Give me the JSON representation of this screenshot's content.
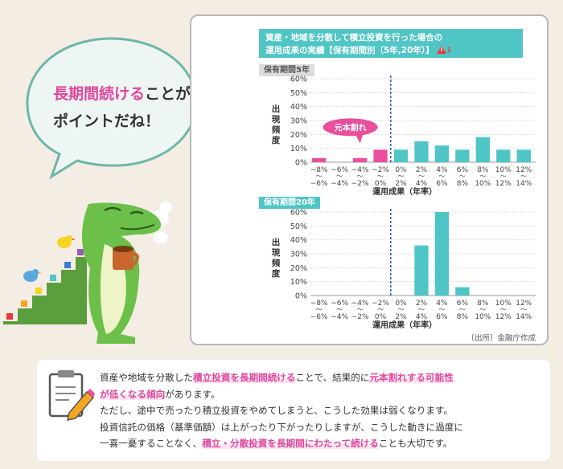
{
  "bubble": {
    "line1_pink": "長期間続ける",
    "line1_rest": "ことが",
    "line2": "ポイントだね！"
  },
  "panel": {
    "title_line1": "資産・地域を分散して積立投資を行った場合の",
    "title_line2": "運用成果の実績【保有期間別（5年,20年）】",
    "warn_icon": "!",
    "warn_num": "1",
    "ylabel": "出現頻度",
    "source": "〔出所〕金融庁作成"
  },
  "chart_data": [
    {
      "type": "bar",
      "title": "保有期間5年",
      "categories": [
        "−8%〜−6%",
        "−6%〜−4%",
        "−4%〜−2%",
        "−2%〜0%",
        "0%〜2%",
        "2%〜4%",
        "4%〜6%",
        "6%〜8%",
        "8%〜10%",
        "10%〜12%",
        "12%〜14%"
      ],
      "category_top": [
        "−8%",
        "−6%",
        "−4%",
        "−2%",
        "0%",
        "2%",
        "4%",
        "6%",
        "8%",
        "10%",
        "12%"
      ],
      "category_bottom": [
        "−6%",
        "−4%",
        "−2%",
        "0%",
        "2%",
        "4%",
        "6%",
        "8%",
        "10%",
        "12%",
        "14%"
      ],
      "values": [
        3,
        0,
        3,
        9,
        9,
        15,
        12,
        9,
        18,
        9,
        9
      ],
      "ylim": [
        0,
        60
      ],
      "yticks": [
        "0%",
        "10%",
        "20%",
        "30%",
        "40%",
        "50%",
        "60%"
      ],
      "ylabel": "出現頻度",
      "xlabel": "運用成果（年率）",
      "annotation": "元本割れ",
      "colors": {
        "loss": "#e94f9c",
        "gain": "#4fc6c5",
        "divider": "#2b5fa8"
      }
    },
    {
      "type": "bar",
      "title": "保有期間20年",
      "categories": [
        "−8%〜−6%",
        "−6%〜−4%",
        "−4%〜−2%",
        "−2%〜0%",
        "0%〜2%",
        "2%〜4%",
        "4%〜6%",
        "6%〜8%",
        "8%〜10%",
        "10%〜12%",
        "12%〜14%"
      ],
      "category_top": [
        "−8%",
        "−6%",
        "−4%",
        "−2%",
        "0%",
        "2%",
        "4%",
        "6%",
        "8%",
        "10%",
        "12%"
      ],
      "category_bottom": [
        "−6%",
        "−4%",
        "−2%",
        "0%",
        "2%",
        "4%",
        "6%",
        "8%",
        "10%",
        "12%",
        "14%"
      ],
      "values": [
        0,
        0,
        0,
        0,
        0,
        36,
        60,
        6,
        0,
        0,
        0
      ],
      "ylim": [
        0,
        60
      ],
      "yticks": [
        "0%",
        "10%",
        "20%",
        "30%",
        "40%",
        "50%",
        "60%"
      ],
      "ylabel": "出現頻度",
      "xlabel": "運用成果（年率）",
      "colors": {
        "loss": "#e94f9c",
        "gain": "#4fc6c5",
        "divider": "#2b5fa8"
      }
    }
  ],
  "note": {
    "l1_a": "資産や地域を分散した",
    "l1_b": "積立投資を長期間続ける",
    "l1_c": "ことで、結果的に",
    "l1_d": "元本割れする可能性",
    "l2_a": "が低くなる傾向",
    "l2_b": "があります。",
    "l3": "ただし、途中で売ったり積立投資をやめてしまうと、こうした効果は弱くなります。",
    "l4": "投資信託の価格（基準価額）は上がったり下がったりしますが、こうした動きに過度に",
    "l5_a": "一喜一憂することなく、",
    "l5_b": "積立・分散投資を長期間にわたって続ける",
    "l5_c": "ことも大切です。"
  }
}
